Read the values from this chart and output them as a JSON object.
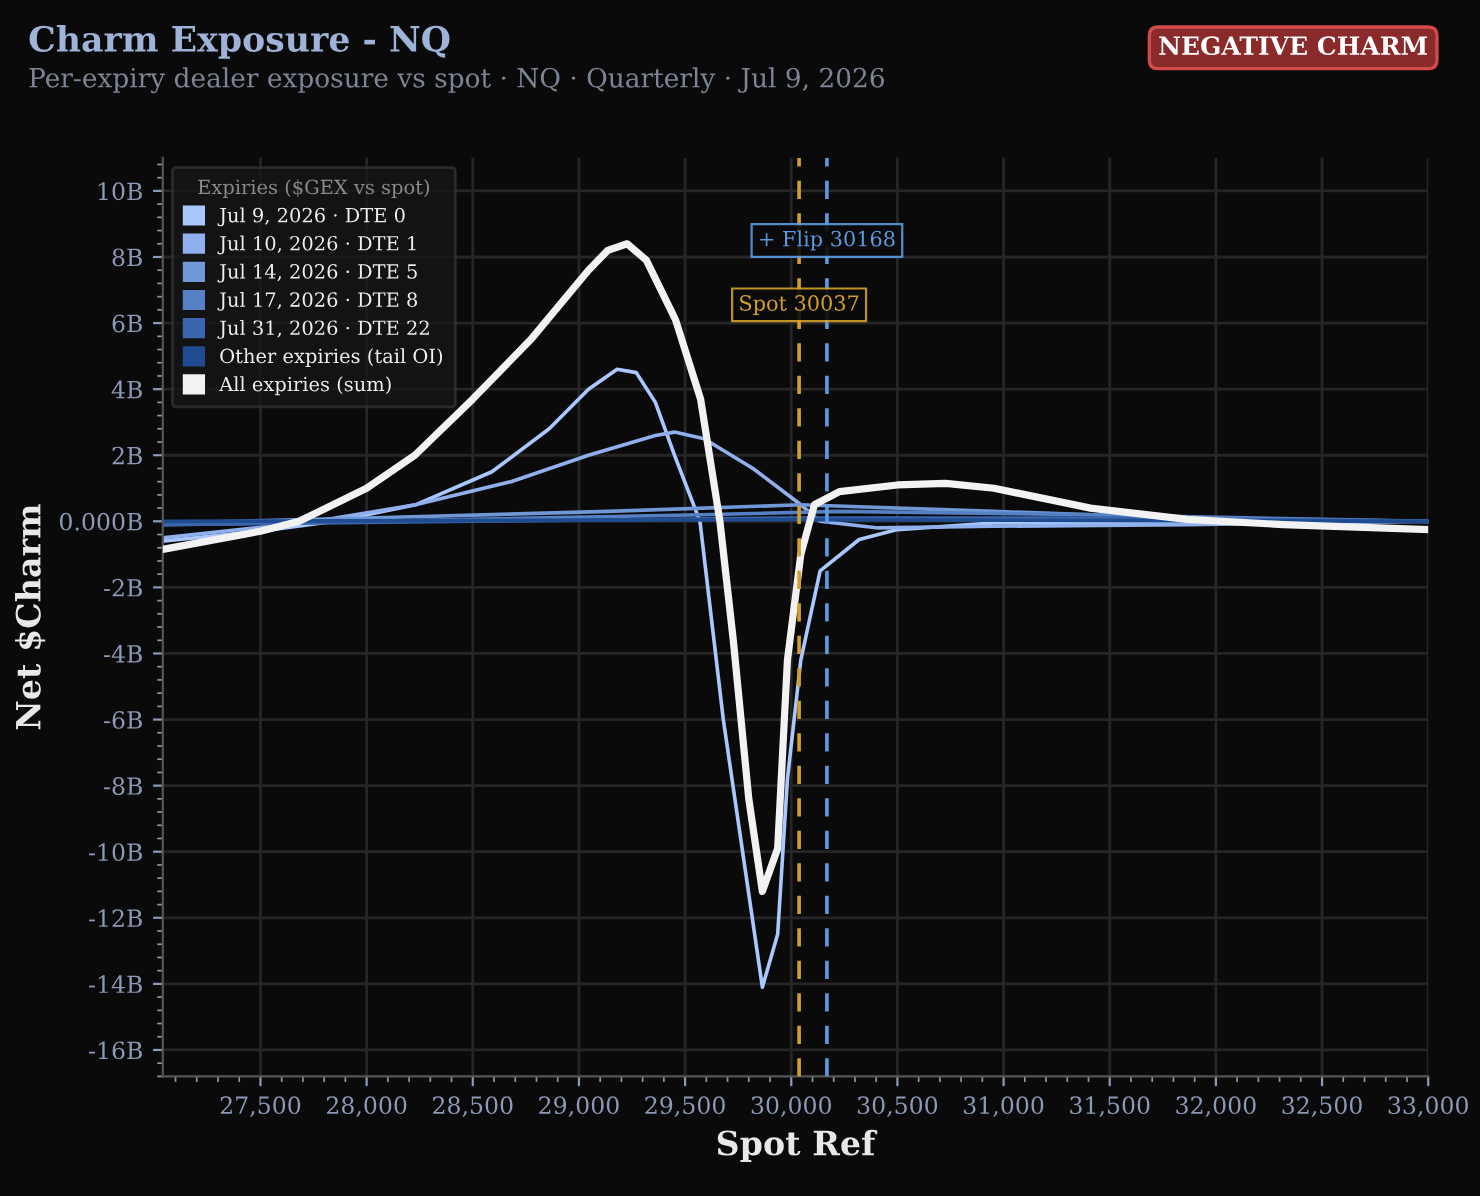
{
  "chart_data": {
    "type": "line",
    "title": "Charm Exposure - NQ",
    "subtitle": "Per-expiry dealer exposure vs spot · NQ · Quarterly · Jul 9, 2026",
    "xlabel": "Spot Ref",
    "ylabel": "Net $Charm",
    "legend_title": "Expiries ($GEX vs spot)",
    "annotations": [
      "NEGATIVE CHARM"
    ],
    "xlim": [
      27040,
      33000
    ],
    "xticks": [
      {
        "value": 27500,
        "label": "27,500"
      },
      {
        "value": 28000,
        "label": "28,000"
      },
      {
        "value": 28500,
        "label": "28,500"
      },
      {
        "value": 29000,
        "label": "29,000"
      },
      {
        "value": 29500,
        "label": "29,500"
      },
      {
        "value": 30000,
        "label": "30,000"
      },
      {
        "value": 30500,
        "label": "30,500"
      },
      {
        "value": 31000,
        "label": "31,000"
      },
      {
        "value": 31500,
        "label": "31,500"
      },
      {
        "value": 32000,
        "label": "32,000"
      },
      {
        "value": 32500,
        "label": "32,500"
      },
      {
        "value": 33000,
        "label": "33,000"
      }
    ],
    "ylim": [
      -16.8,
      11
    ],
    "yticks": [
      {
        "value": -16,
        "label": "-16B"
      },
      {
        "value": -14,
        "label": "-14B"
      },
      {
        "value": -12,
        "label": "-12B"
      },
      {
        "value": -10,
        "label": "-10B"
      },
      {
        "value": -8,
        "label": "-8B"
      },
      {
        "value": -6,
        "label": "-6B"
      },
      {
        "value": -4,
        "label": "-4B"
      },
      {
        "value": -2,
        "label": "-2B"
      },
      {
        "value": 0,
        "label": "0.000B"
      },
      {
        "value": 2,
        "label": "2B"
      },
      {
        "value": 4,
        "label": "4B"
      },
      {
        "value": 6,
        "label": "6B"
      },
      {
        "value": 8,
        "label": "8B"
      },
      {
        "value": 10,
        "label": "10B"
      }
    ],
    "grid": true,
    "legend": "top left",
    "marker": "none",
    "line_style": "solid",
    "ref_lines": [
      {
        "axis": "x",
        "value": 30037,
        "label": "Spot 30037",
        "color": "#d4a02a",
        "line_style": "dashed"
      },
      {
        "axis": "x",
        "value": 30168,
        "label": "+ Flip 30168",
        "color": "#5b9be0",
        "line_style": "dashed"
      }
    ],
    "series": [
      {
        "name": "Jul 9, 2026 · DTE 0",
        "color": "#a9c8ff",
        "x": [
          27040,
          27500,
          27850,
          28230,
          28590,
          28860,
          29045,
          29180,
          29270,
          29360,
          29450,
          29570,
          29680,
          29864,
          29936,
          29982,
          30045,
          30136,
          30320,
          30500,
          30950,
          33000
        ],
        "values": [
          -0.6,
          -0.3,
          0,
          0.5,
          1.5,
          2.8,
          4.0,
          4.6,
          4.5,
          3.6,
          2.0,
          0,
          -6,
          -14.1,
          -12.5,
          -7.8,
          -4.2,
          -1.5,
          -0.55,
          -0.25,
          -0.05,
          0
        ]
      },
      {
        "name": "Jul 10, 2026 · DTE 1",
        "color": "#8fb0ec",
        "x": [
          27040,
          27760,
          28230,
          28680,
          29045,
          29360,
          29450,
          29590,
          29820,
          30045,
          30136,
          30410,
          30950,
          31860,
          33000
        ],
        "values": [
          -0.5,
          0,
          0.5,
          1.2,
          2.0,
          2.6,
          2.7,
          2.5,
          1.6,
          0.5,
          0,
          -0.2,
          -0.15,
          -0.1,
          0
        ]
      },
      {
        "name": "Jul 14, 2026 · DTE 5",
        "color": "#7097d6",
        "x": [
          27040,
          28000,
          29136,
          30045,
          30955,
          31864,
          33000
        ],
        "values": [
          -0.05,
          0.1,
          0.3,
          0.5,
          0.3,
          0.1,
          0
        ]
      },
      {
        "name": "Jul 17, 2026 · DTE 8",
        "color": "#5580c4",
        "x": [
          27040,
          28000,
          29573,
          30227,
          31409,
          33000
        ],
        "values": [
          -0.1,
          0,
          0.2,
          0.3,
          0.2,
          0
        ]
      },
      {
        "name": "Jul 31, 2026 · DTE 22",
        "color": "#3b66ad",
        "x": [
          27040,
          28500,
          30000,
          31500,
          33000
        ],
        "values": [
          -0.1,
          0,
          0.1,
          0.1,
          0
        ]
      },
      {
        "name": "Other expiries (tail OI)",
        "color": "#1f4c90",
        "x": [
          27040,
          30000,
          33000
        ],
        "values": [
          0,
          0.05,
          0
        ]
      },
      {
        "name": "All expiries (sum)",
        "color": "#f2f2f2",
        "x": [
          27040,
          27500,
          27682,
          28000,
          28227,
          28500,
          28773,
          29045,
          29136,
          29227,
          29318,
          29455,
          29573,
          29664,
          29727,
          29800,
          29864,
          29936,
          29982,
          30045,
          30109,
          30227,
          30500,
          30727,
          30955,
          31409,
          31864,
          32318,
          33000
        ],
        "values": [
          -0.85,
          -0.3,
          0,
          1.0,
          2.0,
          3.7,
          5.5,
          7.6,
          8.2,
          8.4,
          7.9,
          6.1,
          3.7,
          0,
          -3.6,
          -8.4,
          -11.2,
          -9.9,
          -4.2,
          -1.0,
          0.5,
          0.9,
          1.1,
          1.15,
          1.0,
          0.4,
          0.06,
          -0.1,
          -0.25
        ]
      }
    ]
  }
}
